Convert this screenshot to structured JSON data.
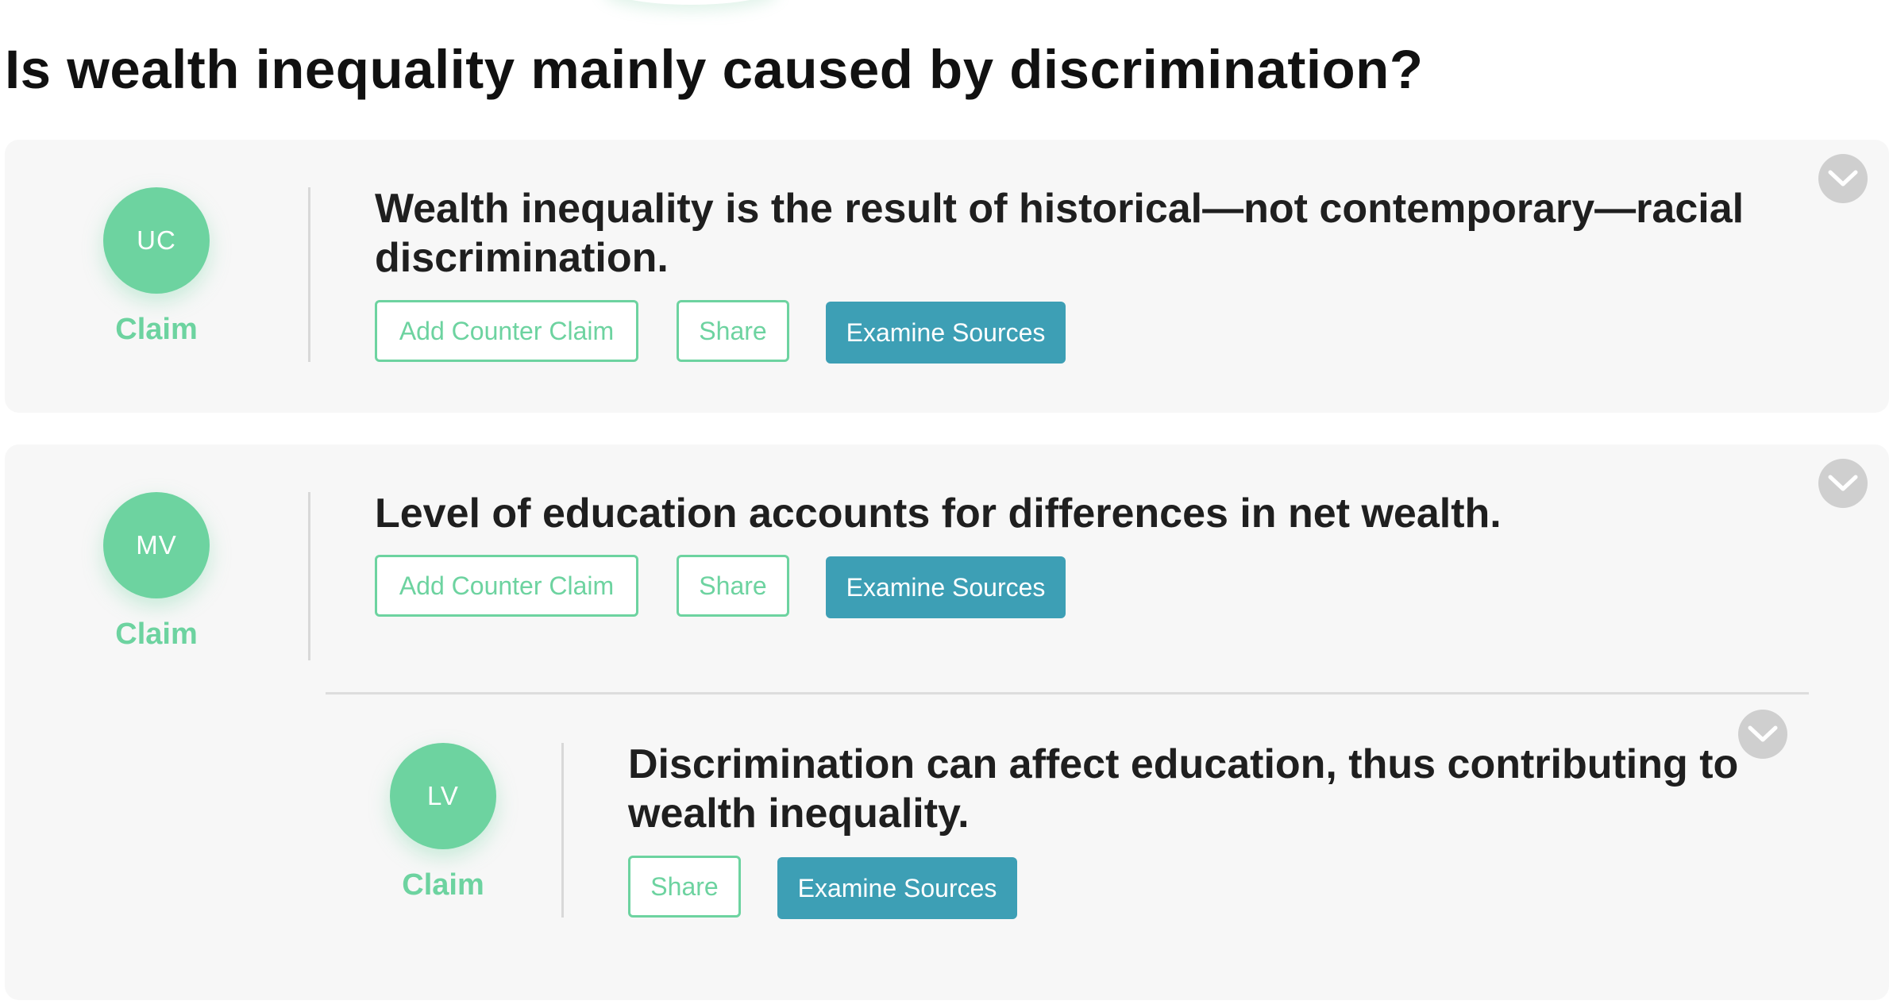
{
  "page": {
    "title": "Is wealth inequality mainly caused by discrimination?"
  },
  "colors": {
    "accent_green": "#6dd3a0",
    "examine_blue": "#3d9fb5",
    "card_bg": "#f7f7f7",
    "chevron_gray": "#cfcfcf"
  },
  "icons": {
    "expand": "chevron-down-icon"
  },
  "claims": [
    {
      "initials": "UC",
      "type_label": "Claim",
      "text": "Wealth inequality is the result of historical—not contemporary—racial discrimination.",
      "buttons": {
        "add_counter": "Add Counter Claim",
        "share": "Share",
        "examine": "Examine Sources"
      }
    },
    {
      "initials": "MV",
      "type_label": "Claim",
      "text": "Level of education accounts for differences in net wealth.",
      "buttons": {
        "add_counter": "Add Counter Claim",
        "share": "Share",
        "examine": "Examine Sources"
      },
      "counter_claims": [
        {
          "initials": "LV",
          "type_label": "Claim",
          "text": "Discrimination can affect education, thus contributing to wealth inequality.",
          "buttons": {
            "share": "Share",
            "examine": "Examine Sources"
          }
        }
      ]
    }
  ]
}
